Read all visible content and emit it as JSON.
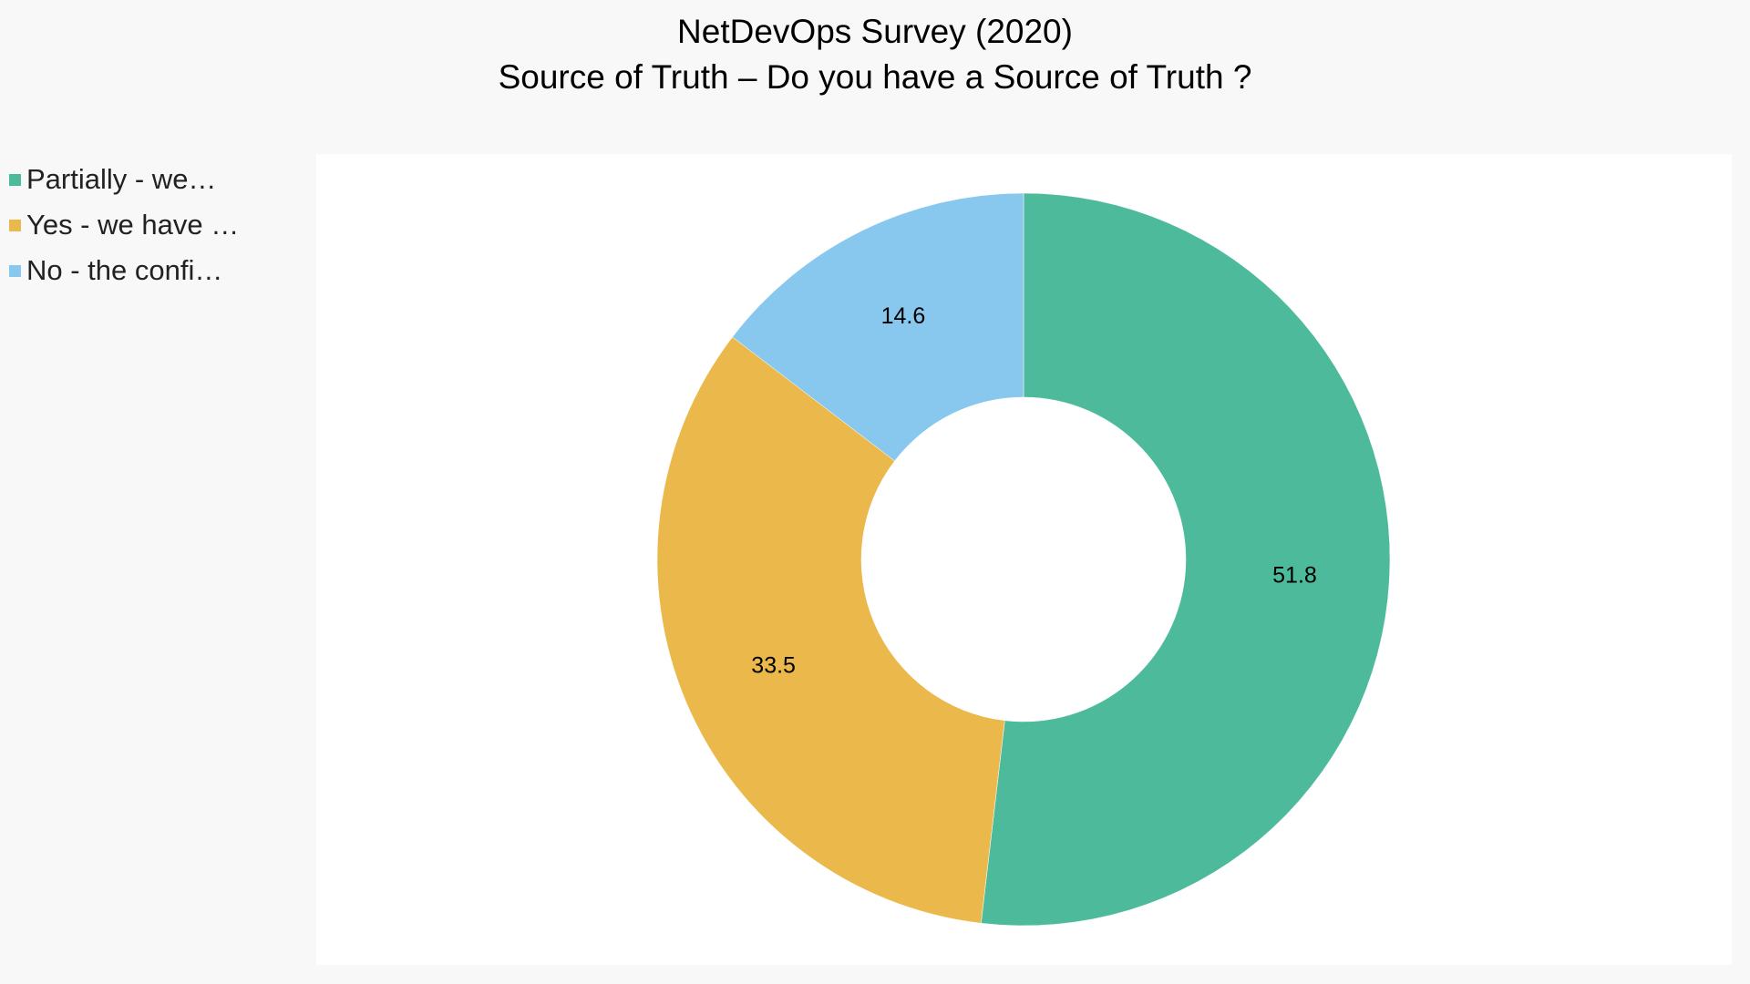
{
  "chart_data": {
    "type": "pie",
    "variant": "donut",
    "title": "NetDevOps Survey (2020)",
    "subtitle": "Source of Truth – Do you have a Source of Truth ?",
    "categories": [
      "Partially - we…",
      "Yes - we have …",
      "No - the confi…"
    ],
    "values": [
      51.8,
      33.5,
      14.6
    ],
    "colors": [
      "#4dbb9b",
      "#ebb94b",
      "#88c8ee"
    ],
    "data_labels": [
      "51.8",
      "33.5",
      "14.6"
    ],
    "legend_position": "left",
    "start_angle_deg": 0,
    "direction": "clockwise"
  }
}
